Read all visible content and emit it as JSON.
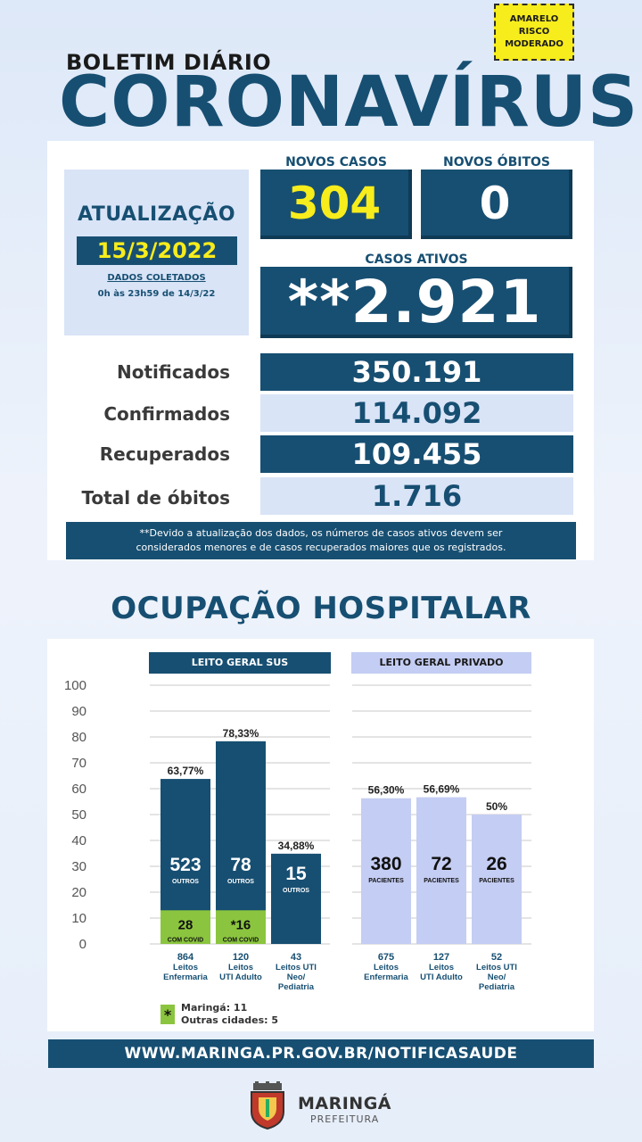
{
  "risk_badge": {
    "line1": "AMARELO",
    "line2": "RISCO",
    "line3": "MODERADO",
    "color": "#f7ec1c"
  },
  "header": {
    "subtitle": "BOLETIM DIÁRIO",
    "title": "CORONAVÍRUS"
  },
  "update": {
    "label": "ATUALIZAÇÃO",
    "date": "15/3/2022",
    "note_line1": "DADOS COLETADOS",
    "note_line2": "0h às 23h59 de 14/3/22"
  },
  "new_cases": {
    "label": "NOVOS CASOS",
    "value": "304"
  },
  "new_deaths": {
    "label": "NOVOS ÓBITOS",
    "value": "0"
  },
  "active_cases": {
    "label": "CASOS ATIVOS",
    "value": "**2.921"
  },
  "stats": [
    {
      "label": "Notificados",
      "value": "350.191"
    },
    {
      "label": "Confirmados",
      "value": "114.092"
    },
    {
      "label": "Recuperados",
      "value": "109.455"
    },
    {
      "label": "Total de óbitos",
      "value": "1.716"
    }
  ],
  "footnote": {
    "line1": "**Devido a atualização dos dados, os números de casos ativos devem ser",
    "line2": "considerados menores e de casos recuperados maiores que os registrados."
  },
  "hospital_title": "OCUPAÇÃO HOSPITALAR",
  "colors": {
    "brand_dark": "#174f72",
    "light_blue": "#d9e4f7",
    "covid_green": "#8bc53f",
    "private_bar": "#c4cdf3",
    "yellow": "#f7ec1c"
  },
  "chart_data": {
    "type": "bar",
    "ylim": [
      0,
      100
    ],
    "yticks": [
      "100",
      "90",
      "80",
      "70",
      "60",
      "50",
      "40",
      "30",
      "20",
      "10",
      "0"
    ],
    "groups": [
      {
        "title": "LEITO GERAL SUS",
        "bars": [
          {
            "pct_label": "63,77%",
            "value": 63.77,
            "covid_value": 13,
            "others": "523",
            "others_label": "OUTROS",
            "covid": "28",
            "covid_label": "COM COVID",
            "beds": "864",
            "cat_line1": "Leitos",
            "cat_line2": "Enfermaria",
            "cat_line3": ""
          },
          {
            "pct_label": "78,33%",
            "value": 78.33,
            "covid_value": 13,
            "others": "78",
            "others_label": "OUTROS",
            "covid": "*16",
            "covid_label": "COM COVID",
            "beds": "120",
            "cat_line1": "Leitos",
            "cat_line2": "UTI Adulto",
            "cat_line3": ""
          },
          {
            "pct_label": "34,88%",
            "value": 34.88,
            "covid_value": 0,
            "others": "15",
            "others_label": "OUTROS",
            "covid": "",
            "covid_label": "",
            "beds": "43",
            "cat_line1": "Leitos UTI",
            "cat_line2": "Neo/",
            "cat_line3": "Pediatria"
          }
        ]
      },
      {
        "title": "LEITO GERAL PRIVADO",
        "bars": [
          {
            "pct_label": "56,30%",
            "value": 56.3,
            "others": "380",
            "others_label": "PACIENTES",
            "beds": "675",
            "cat_line1": "Leitos",
            "cat_line2": "Enfermaria",
            "cat_line3": ""
          },
          {
            "pct_label": "56,69%",
            "value": 56.69,
            "others": "72",
            "others_label": "PACIENTES",
            "beds": "127",
            "cat_line1": "Leitos",
            "cat_line2": "UTI Adulto",
            "cat_line3": ""
          },
          {
            "pct_label": "50%",
            "value": 50,
            "others": "26",
            "others_label": "PACIENTES",
            "beds": "52",
            "cat_line1": "Leitos UTI",
            "cat_line2": "Neo/",
            "cat_line3": "Pediatria"
          }
        ]
      }
    ]
  },
  "legend": {
    "symbol": "*",
    "line1": "Maringá: 11",
    "line2": "Outras cidades: 5"
  },
  "url": "WWW.MARINGA.PR.GOV.BR/NOTIFICASAUDE",
  "logo": {
    "name": "MARINGÁ",
    "sub": "PREFEITURA"
  }
}
